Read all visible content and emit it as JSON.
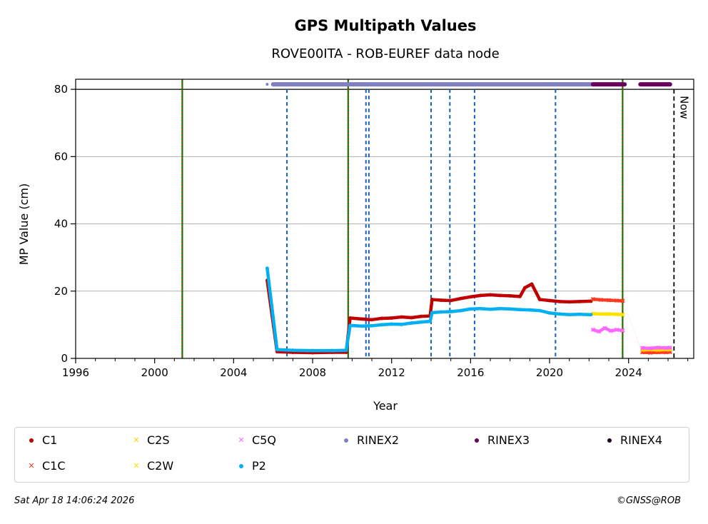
{
  "chart_data": {
    "type": "scatter",
    "title": "GPS Multipath Values",
    "subtitle": "ROVE00ITA - ROB-EUREF data node",
    "xlabel": "Year",
    "ylabel": "MP Value (cm)",
    "xlim": [
      1996,
      2027.3
    ],
    "ylim": [
      0,
      83
    ],
    "x_ticks": [
      "1996",
      "2000",
      "2004",
      "2008",
      "2012",
      "2016",
      "2020",
      "2024"
    ],
    "y_ticks": [
      "0",
      "20",
      "40",
      "60",
      "80"
    ],
    "grid": "horizontal",
    "legend_position": "below",
    "now_label": "Now",
    "now_x": 2026.3,
    "green_lines": [
      2001.4,
      2009.8,
      2023.7
    ],
    "blue_dashed_lines": [
      2006.7,
      2010.7,
      2010.85,
      2014.0,
      2014.95,
      2016.2,
      2020.3
    ],
    "rinex_line_y": 81.5,
    "series": [
      {
        "name": "C1",
        "color": "#c00000",
        "marker": "dot",
        "points": [
          [
            2005.7,
            23.2
          ],
          [
            2006.2,
            2.0
          ],
          [
            2007.0,
            1.8
          ],
          [
            2008.0,
            1.7
          ],
          [
            2009.0,
            1.8
          ],
          [
            2009.7,
            1.8
          ],
          [
            2009.9,
            12.0
          ],
          [
            2010.5,
            11.7
          ],
          [
            2011.0,
            11.5
          ],
          [
            2011.5,
            11.9
          ],
          [
            2012.0,
            12.0
          ],
          [
            2012.5,
            12.3
          ],
          [
            2013.0,
            12.1
          ],
          [
            2013.5,
            12.5
          ],
          [
            2013.95,
            12.6
          ],
          [
            2014.05,
            17.5
          ],
          [
            2014.5,
            17.3
          ],
          [
            2015.0,
            17.2
          ],
          [
            2015.5,
            17.8
          ],
          [
            2016.0,
            18.3
          ],
          [
            2016.5,
            18.7
          ],
          [
            2017.0,
            18.9
          ],
          [
            2017.5,
            18.7
          ],
          [
            2018.0,
            18.6
          ],
          [
            2018.5,
            18.4
          ],
          [
            2018.75,
            21.0
          ],
          [
            2019.1,
            22.1
          ],
          [
            2019.5,
            17.5
          ],
          [
            2020.0,
            17.2
          ],
          [
            2020.5,
            16.9
          ],
          [
            2021.0,
            16.8
          ],
          [
            2021.5,
            16.9
          ],
          [
            2022.1,
            17.0
          ]
        ]
      },
      {
        "name": "C1C",
        "color": "#ff3b1f",
        "marker": "x",
        "points": [
          [
            2022.2,
            17.6
          ],
          [
            2022.6,
            17.4
          ],
          [
            2023.0,
            17.3
          ],
          [
            2023.4,
            17.2
          ],
          [
            2023.7,
            17.1
          ],
          [
            2024.7,
            1.8
          ],
          [
            2025.1,
            1.7
          ],
          [
            2025.5,
            1.8
          ],
          [
            2025.9,
            1.8
          ],
          [
            2026.1,
            1.9
          ]
        ]
      },
      {
        "name": "C2S",
        "color": "#ffd400",
        "marker": "x",
        "points": [
          [
            2024.7,
            2.5
          ],
          [
            2025.1,
            2.6
          ],
          [
            2025.5,
            2.5
          ],
          [
            2025.9,
            2.6
          ],
          [
            2026.1,
            2.6
          ]
        ]
      },
      {
        "name": "C2W",
        "color": "#ffe100",
        "marker": "x",
        "points": [
          [
            2022.2,
            13.3
          ],
          [
            2022.6,
            13.2
          ],
          [
            2023.0,
            13.2
          ],
          [
            2023.4,
            13.1
          ],
          [
            2023.7,
            13.0
          ]
        ]
      },
      {
        "name": "C5Q",
        "color": "#ff66ff",
        "marker": "x",
        "points": [
          [
            2022.2,
            8.5
          ],
          [
            2022.5,
            8.0
          ],
          [
            2022.8,
            9.0
          ],
          [
            2023.1,
            8.2
          ],
          [
            2023.4,
            8.5
          ],
          [
            2023.7,
            8.3
          ],
          [
            2024.7,
            3.1
          ],
          [
            2025.1,
            3.0
          ],
          [
            2025.5,
            3.2
          ],
          [
            2025.9,
            3.1
          ],
          [
            2026.1,
            3.2
          ]
        ]
      },
      {
        "name": "P2",
        "color": "#00b0f0",
        "marker": "dot",
        "points": [
          [
            2005.7,
            26.8
          ],
          [
            2006.2,
            2.6
          ],
          [
            2007.0,
            2.4
          ],
          [
            2008.0,
            2.3
          ],
          [
            2009.0,
            2.3
          ],
          [
            2009.7,
            2.4
          ],
          [
            2009.9,
            9.8
          ],
          [
            2010.5,
            9.6
          ],
          [
            2011.0,
            9.7
          ],
          [
            2011.5,
            10.0
          ],
          [
            2012.0,
            10.2
          ],
          [
            2012.5,
            10.1
          ],
          [
            2013.0,
            10.5
          ],
          [
            2013.5,
            10.8
          ],
          [
            2013.95,
            11.0
          ],
          [
            2014.05,
            13.6
          ],
          [
            2014.5,
            13.8
          ],
          [
            2015.0,
            13.9
          ],
          [
            2015.5,
            14.2
          ],
          [
            2016.0,
            14.7
          ],
          [
            2016.5,
            14.8
          ],
          [
            2017.0,
            14.6
          ],
          [
            2017.5,
            14.8
          ],
          [
            2018.0,
            14.7
          ],
          [
            2018.5,
            14.5
          ],
          [
            2019.0,
            14.4
          ],
          [
            2019.5,
            14.2
          ],
          [
            2020.0,
            13.5
          ],
          [
            2020.5,
            13.2
          ],
          [
            2021.0,
            13.0
          ],
          [
            2021.5,
            13.1
          ],
          [
            2022.1,
            13.0
          ]
        ]
      }
    ],
    "rinex_segments": [
      {
        "name": "RINEX2",
        "color": "#7f7fc4",
        "points": [
          [
            2005.7,
            81.5
          ]
        ],
        "from": 2006.0,
        "to": 2022.2
      },
      {
        "name": "RINEX3",
        "color": "#6a0060",
        "points": [],
        "from": 2022.2,
        "to": 2023.8
      },
      {
        "name": "RINEX3",
        "color": "#6a0060",
        "points": [],
        "from": 2024.6,
        "to": 2026.1
      }
    ]
  },
  "legend": {
    "items": [
      {
        "label": "C1",
        "color": "#c00000",
        "marker": "dot"
      },
      {
        "label": "C2S",
        "color": "#ffd400",
        "marker": "x"
      },
      {
        "label": "C5Q",
        "color": "#ff66ff",
        "marker": "x"
      },
      {
        "label": "RINEX2",
        "color": "#7f7fc4",
        "marker": "dot"
      },
      {
        "label": "RINEX3",
        "color": "#6a0060",
        "marker": "dot"
      },
      {
        "label": "RINEX4",
        "color": "#1a0020",
        "marker": "dot"
      },
      {
        "label": "C1C",
        "color": "#ff3b1f",
        "marker": "x"
      },
      {
        "label": "C2W",
        "color": "#ffe100",
        "marker": "x"
      },
      {
        "label": "P2",
        "color": "#00b0f0",
        "marker": "dot"
      }
    ]
  },
  "footer": {
    "timestamp": "Sat Apr 18 14:06:24 2026",
    "copyright": "©GNSS@ROB"
  }
}
